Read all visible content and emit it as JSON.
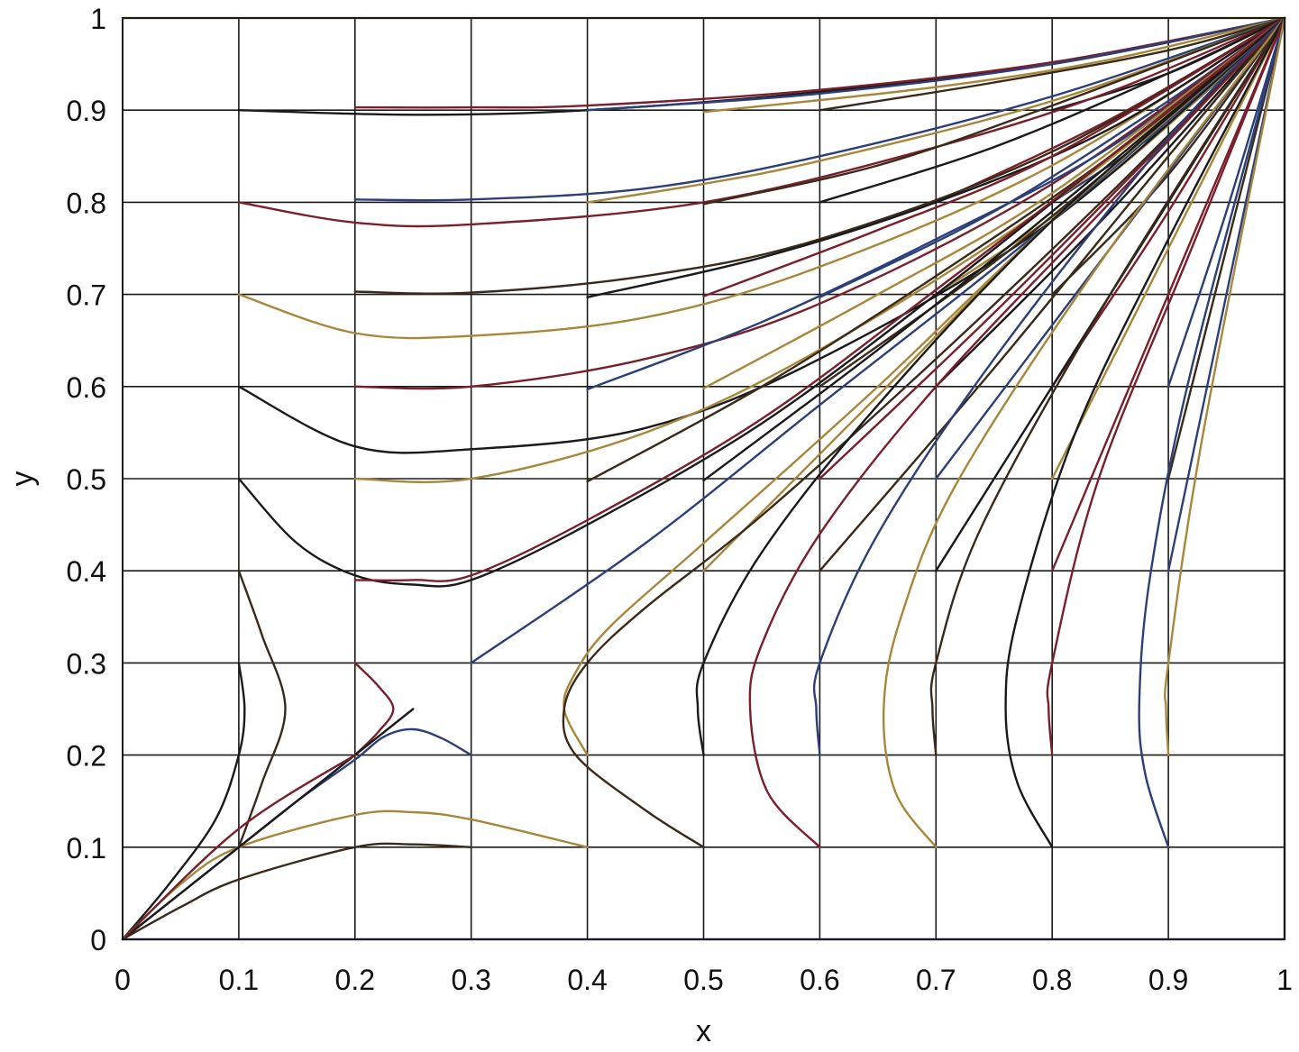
{
  "chart_data": {
    "type": "line",
    "title": "",
    "xlabel": "x",
    "ylabel": "y",
    "xlim": [
      0,
      1
    ],
    "ylim": [
      0,
      1
    ],
    "xticks": [
      "0",
      "0.1",
      "0.2",
      "0.3",
      "0.4",
      "0.5",
      "0.6",
      "0.7",
      "0.8",
      "0.9",
      "1"
    ],
    "yticks": [
      "0",
      "0.1",
      "0.2",
      "0.3",
      "0.4",
      "0.5",
      "0.6",
      "0.7",
      "0.8",
      "0.9",
      "1"
    ],
    "grid": true,
    "legend": "none",
    "colors": [
      "#1a1a1a",
      "#7a1f2b",
      "#2d3f78",
      "#a8873a",
      "#3a2a1a"
    ],
    "series": [
      {
        "x": [
          0.1,
          0.25,
          0.4,
          0.6,
          0.8,
          1.0
        ],
        "y": [
          0.9,
          0.895,
          0.9,
          0.92,
          0.95,
          1.0
        ]
      },
      {
        "x": [
          0.2,
          0.3,
          0.4,
          0.6,
          0.8,
          1.0
        ],
        "y": [
          0.903,
          0.903,
          0.905,
          0.922,
          0.952,
          1.0
        ]
      },
      {
        "x": [
          0.4,
          0.6,
          0.8,
          1.0
        ],
        "y": [
          0.9,
          0.918,
          0.95,
          1.0
        ]
      },
      {
        "x": [
          0.5,
          0.7,
          0.85,
          1.0
        ],
        "y": [
          0.898,
          0.925,
          0.955,
          1.0
        ]
      },
      {
        "x": [
          0.6,
          0.75,
          0.9,
          1.0
        ],
        "y": [
          0.9,
          0.93,
          0.965,
          1.0
        ]
      },
      {
        "x": [
          0.8,
          0.9,
          1.0
        ],
        "y": [
          0.9,
          0.94,
          1.0
        ]
      },
      {
        "x": [
          0.1,
          0.2,
          0.3,
          0.5,
          0.7,
          0.85,
          1.0
        ],
        "y": [
          0.8,
          0.778,
          0.776,
          0.8,
          0.86,
          0.92,
          1.0
        ]
      },
      {
        "x": [
          0.2,
          0.3,
          0.45,
          0.6,
          0.8,
          1.0
        ],
        "y": [
          0.803,
          0.803,
          0.815,
          0.85,
          0.915,
          1.0
        ]
      },
      {
        "x": [
          0.4,
          0.5,
          0.6,
          0.8,
          1.0
        ],
        "y": [
          0.8,
          0.82,
          0.845,
          0.91,
          1.0
        ]
      },
      {
        "x": [
          0.5,
          0.65,
          0.8,
          1.0
        ],
        "y": [
          0.798,
          0.84,
          0.905,
          1.0
        ]
      },
      {
        "x": [
          0.6,
          0.75,
          0.9,
          1.0
        ],
        "y": [
          0.8,
          0.86,
          0.94,
          1.0
        ]
      },
      {
        "x": [
          0.7,
          0.85,
          1.0
        ],
        "y": [
          0.8,
          0.89,
          1.0
        ]
      },
      {
        "x": [
          0.8,
          0.9,
          1.0
        ],
        "y": [
          0.8,
          0.885,
          1.0
        ]
      },
      {
        "x": [
          0.1,
          0.2,
          0.3,
          0.45,
          0.6,
          0.8,
          1.0
        ],
        "y": [
          0.7,
          0.658,
          0.655,
          0.675,
          0.73,
          0.84,
          1.0
        ]
      },
      {
        "x": [
          0.2,
          0.3,
          0.45,
          0.6,
          0.8,
          1.0
        ],
        "y": [
          0.703,
          0.702,
          0.72,
          0.76,
          0.855,
          1.0
        ]
      },
      {
        "x": [
          0.4,
          0.55,
          0.7,
          0.85,
          1.0
        ],
        "y": [
          0.697,
          0.74,
          0.8,
          0.88,
          1.0
        ]
      },
      {
        "x": [
          0.5,
          0.65,
          0.8,
          1.0
        ],
        "y": [
          0.698,
          0.77,
          0.85,
          1.0
        ]
      },
      {
        "x": [
          0.6,
          0.75,
          0.9,
          1.0
        ],
        "y": [
          0.697,
          0.79,
          0.91,
          1.0
        ]
      },
      {
        "x": [
          0.7,
          0.85,
          1.0
        ],
        "y": [
          0.7,
          0.83,
          1.0
        ]
      },
      {
        "x": [
          0.8,
          0.9,
          1.0
        ],
        "y": [
          0.7,
          0.83,
          1.0
        ]
      },
      {
        "x": [
          0.1,
          0.2,
          0.3,
          0.45,
          0.6,
          0.8,
          1.0
        ],
        "y": [
          0.6,
          0.535,
          0.532,
          0.555,
          0.63,
          0.78,
          1.0
        ]
      },
      {
        "x": [
          0.2,
          0.3,
          0.45,
          0.6,
          0.8,
          1.0
        ],
        "y": [
          0.6,
          0.6,
          0.63,
          0.69,
          0.82,
          1.0
        ]
      },
      {
        "x": [
          0.4,
          0.55,
          0.7,
          0.85,
          1.0
        ],
        "y": [
          0.597,
          0.67,
          0.76,
          0.86,
          1.0
        ]
      },
      {
        "x": [
          0.5,
          0.65,
          0.8,
          1.0
        ],
        "y": [
          0.598,
          0.7,
          0.81,
          1.0
        ]
      },
      {
        "x": [
          0.6,
          0.75,
          0.9,
          1.0
        ],
        "y": [
          0.6,
          0.735,
          0.89,
          1.0
        ]
      },
      {
        "x": [
          0.7,
          0.85,
          1.0
        ],
        "y": [
          0.6,
          0.79,
          1.0
        ]
      },
      {
        "x": [
          0.8,
          0.9,
          1.0
        ],
        "y": [
          0.6,
          0.79,
          1.0
        ]
      },
      {
        "x": [
          0.9,
          0.95,
          1.0
        ],
        "y": [
          0.6,
          0.79,
          1.0
        ]
      },
      {
        "x": [
          0.2,
          0.3,
          0.45,
          0.6,
          0.8,
          1.0
        ],
        "y": [
          0.5,
          0.5,
          0.55,
          0.64,
          0.8,
          1.0
        ]
      },
      {
        "x": [
          0.4,
          0.55,
          0.7,
          0.85,
          1.0
        ],
        "y": [
          0.497,
          0.6,
          0.72,
          0.85,
          1.0
        ]
      },
      {
        "x": [
          0.5,
          0.65,
          0.8,
          1.0
        ],
        "y": [
          0.498,
          0.64,
          0.79,
          1.0
        ]
      },
      {
        "x": [
          0.6,
          0.75,
          0.9,
          1.0
        ],
        "y": [
          0.5,
          0.68,
          0.87,
          1.0
        ]
      },
      {
        "x": [
          0.7,
          0.85,
          1.0
        ],
        "y": [
          0.5,
          0.75,
          1.0
        ]
      },
      {
        "x": [
          0.8,
          0.9,
          1.0
        ],
        "y": [
          0.5,
          0.75,
          1.0
        ]
      },
      {
        "x": [
          0.9,
          0.95,
          1.0
        ],
        "y": [
          0.5,
          0.75,
          1.0
        ]
      },
      {
        "x": [
          0.1,
          0.15,
          0.2,
          0.25,
          0.3,
          0.4,
          0.55,
          0.7,
          0.85,
          1.0
        ],
        "y": [
          0.5,
          0.43,
          0.395,
          0.385,
          0.39,
          0.45,
          0.56,
          0.7,
          0.85,
          1.0
        ]
      },
      {
        "x": [
          0.2,
          0.25,
          0.3,
          0.4,
          0.55,
          0.7,
          0.85,
          1.0
        ],
        "y": [
          0.39,
          0.39,
          0.395,
          0.455,
          0.565,
          0.705,
          0.85,
          1.0
        ]
      },
      {
        "x": [
          0.3,
          0.45,
          0.6,
          0.8,
          1.0
        ],
        "y": [
          0.3,
          0.43,
          0.58,
          0.78,
          1.0
        ]
      },
      {
        "x": [
          0.5,
          0.65,
          0.8,
          1.0
        ],
        "y": [
          0.4,
          0.59,
          0.78,
          1.0
        ]
      },
      {
        "x": [
          0.6,
          0.75,
          0.9,
          1.0
        ],
        "y": [
          0.4,
          0.62,
          0.85,
          1.0
        ]
      },
      {
        "x": [
          0.7,
          0.85,
          1.0
        ],
        "y": [
          0.4,
          0.7,
          1.0
        ]
      },
      {
        "x": [
          0.8,
          0.9,
          1.0
        ],
        "y": [
          0.4,
          0.7,
          1.0
        ]
      },
      {
        "x": [
          0.9,
          0.95,
          1.0
        ],
        "y": [
          0.4,
          0.7,
          1.0
        ]
      },
      {
        "x": [
          0.4,
          0.38,
          0.39,
          0.42,
          0.5,
          0.65,
          0.8,
          1.0
        ],
        "y": [
          0.2,
          0.25,
          0.29,
          0.34,
          0.43,
          0.6,
          0.78,
          1.0
        ]
      },
      {
        "x": [
          0.5,
          0.45,
          0.39,
          0.38,
          0.4,
          0.45,
          0.55,
          0.7,
          0.85,
          1.0
        ],
        "y": [
          0.1,
          0.14,
          0.2,
          0.25,
          0.3,
          0.36,
          0.46,
          0.63,
          0.81,
          1.0
        ]
      },
      {
        "x": [
          0.5,
          0.495,
          0.5,
          0.55,
          0.65,
          0.8,
          1.0
        ],
        "y": [
          0.2,
          0.25,
          0.3,
          0.42,
          0.58,
          0.78,
          1.0
        ]
      },
      {
        "x": [
          0.6,
          0.555,
          0.54,
          0.55,
          0.6,
          0.7,
          0.85,
          1.0
        ],
        "y": [
          0.1,
          0.16,
          0.25,
          0.32,
          0.44,
          0.6,
          0.8,
          1.0
        ]
      },
      {
        "x": [
          0.6,
          0.597,
          0.6,
          0.65,
          0.75,
          0.9,
          1.0
        ],
        "y": [
          0.2,
          0.25,
          0.3,
          0.44,
          0.63,
          0.87,
          1.0
        ]
      },
      {
        "x": [
          0.7,
          0.665,
          0.655,
          0.67,
          0.72,
          0.85,
          1.0
        ],
        "y": [
          0.1,
          0.16,
          0.25,
          0.35,
          0.5,
          0.75,
          1.0
        ]
      },
      {
        "x": [
          0.7,
          0.697,
          0.7,
          0.74,
          0.85,
          1.0
        ],
        "y": [
          0.2,
          0.25,
          0.3,
          0.45,
          0.7,
          1.0
        ]
      },
      {
        "x": [
          0.8,
          0.77,
          0.76,
          0.77,
          0.82,
          0.9,
          1.0
        ],
        "y": [
          0.1,
          0.17,
          0.25,
          0.35,
          0.55,
          0.76,
          1.0
        ]
      },
      {
        "x": [
          0.8,
          0.797,
          0.8,
          0.84,
          0.92,
          1.0
        ],
        "y": [
          0.2,
          0.25,
          0.3,
          0.5,
          0.75,
          1.0
        ]
      },
      {
        "x": [
          0.9,
          0.88,
          0.875,
          0.885,
          0.92,
          1.0
        ],
        "y": [
          0.1,
          0.18,
          0.26,
          0.4,
          0.62,
          1.0
        ]
      },
      {
        "x": [
          0.9,
          0.898,
          0.9,
          0.93,
          1.0
        ],
        "y": [
          0.2,
          0.25,
          0.3,
          0.55,
          1.0
        ]
      },
      {
        "x": [
          0.1,
          0.12,
          0.14,
          0.12,
          0.1
        ],
        "y": [
          0.4,
          0.33,
          0.25,
          0.17,
          0.1
        ]
      },
      {
        "x": [
          0.1,
          0.105,
          0.1,
          0.08,
          0.04,
          0.0
        ],
        "y": [
          0.3,
          0.25,
          0.2,
          0.13,
          0.06,
          0.0
        ]
      },
      {
        "x": [
          0.2,
          0.22,
          0.233,
          0.22,
          0.2
        ],
        "y": [
          0.3,
          0.275,
          0.25,
          0.225,
          0.2
        ]
      },
      {
        "x": [
          0.3,
          0.275,
          0.25,
          0.225,
          0.2,
          0.15,
          0.1,
          0.05,
          0.0
        ],
        "y": [
          0.2,
          0.218,
          0.228,
          0.22,
          0.195,
          0.15,
          0.1,
          0.05,
          0.0
        ]
      },
      {
        "x": [
          0.4,
          0.3,
          0.25,
          0.2,
          0.1,
          0.05,
          0.0
        ],
        "y": [
          0.1,
          0.13,
          0.138,
          0.135,
          0.1,
          0.06,
          0.0
        ]
      },
      {
        "x": [
          0.3,
          0.25,
          0.2,
          0.1,
          0.05,
          0.0
        ],
        "y": [
          0.1,
          0.103,
          0.1,
          0.065,
          0.035,
          0.0
        ]
      },
      {
        "x": [
          0.0,
          0.05,
          0.1,
          0.14,
          0.2,
          0.25
        ],
        "y": [
          0.0,
          0.05,
          0.1,
          0.14,
          0.2,
          0.25
        ]
      },
      {
        "x": [
          0.0,
          0.1,
          0.2
        ],
        "y": [
          0.0,
          0.12,
          0.2
        ]
      },
      {
        "x": [
          0.0,
          0.5,
          1.0
        ],
        "y": [
          0.0,
          0.0,
          0.0
        ]
      },
      {
        "x": [
          0.0,
          0.5,
          1.0
        ],
        "y": [
          1.0,
          1.0,
          1.0
        ]
      },
      {
        "x": [
          1.0,
          1.0
        ],
        "y": [
          0.0,
          1.0
        ]
      }
    ]
  }
}
